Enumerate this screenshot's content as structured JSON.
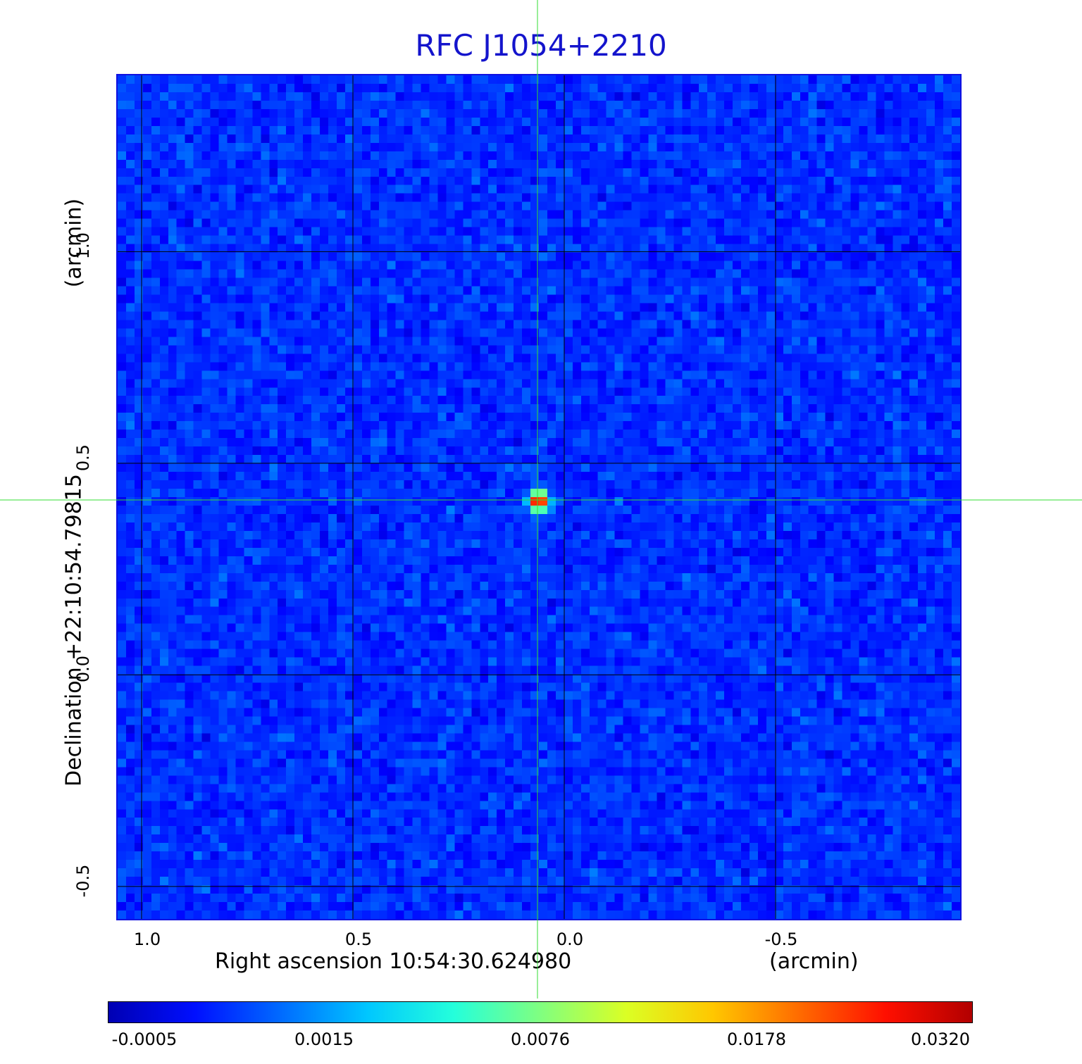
{
  "chart_data": {
    "type": "heatmap",
    "title": "RFC J1054+2210",
    "xlabel": "Right ascension  10:54:30.624980",
    "xlabel_unit": "(arcmin)",
    "ylabel": "Declination  +22:10:54.79815",
    "ylabel_unit": "(arcmin)",
    "xlim": [
      1.06,
      -0.94
    ],
    "ylim": [
      -0.58,
      1.42
    ],
    "x_ticks": [
      1.0,
      0.5,
      0.0,
      -0.5
    ],
    "x_tick_labels": [
      "1.0",
      "0.5",
      "0.0",
      "-0.5"
    ],
    "y_ticks": [
      1.0,
      0.5,
      0.0,
      -0.5
    ],
    "y_tick_labels": [
      "1.0",
      "0.5",
      "0.0",
      "-0.5"
    ],
    "grid": true,
    "source_peak": {
      "x": 0.06,
      "y": 0.41,
      "value": 0.032
    },
    "crosshair": {
      "x": 0.06,
      "y": 0.41
    },
    "colormap": "jet",
    "colorbar": {
      "ticks": [
        -0.0005,
        0.0015,
        0.0076,
        0.0178,
        0.032
      ],
      "tick_labels": [
        "-0.0005",
        "0.0015",
        "0.0076",
        "0.0178",
        "0.0320"
      ],
      "placement": "bottom"
    },
    "background_level": 0.0005
  },
  "colors": {
    "title": "#1414cc",
    "frame": "#1010e0",
    "crosshair": "#33dd33",
    "grid": "#000000"
  }
}
